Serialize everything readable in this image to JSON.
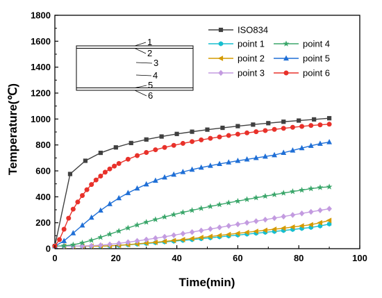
{
  "chart_data": {
    "type": "line",
    "title": "",
    "xlabel": "Time(min)",
    "ylabel": "Temperature(℃)",
    "xlim": [
      0,
      100
    ],
    "ylim": [
      0,
      1800
    ],
    "x_ticks": [
      "0",
      "20",
      "40",
      "60",
      "80",
      "100"
    ],
    "y_ticks": [
      "0",
      "200",
      "400",
      "600",
      "800",
      "1000",
      "1200",
      "1400",
      "1600",
      "1800"
    ],
    "grid": false,
    "legend_position": "top-right",
    "series": [
      {
        "name": "ISO834",
        "color": "#404040",
        "marker": "square",
        "x": [
          0,
          5,
          10,
          15,
          20,
          25,
          30,
          35,
          40,
          45,
          50,
          55,
          60,
          65,
          70,
          75,
          80,
          85,
          90
        ],
        "y": [
          20,
          576,
          678,
          739,
          781,
          815,
          842,
          865,
          885,
          902,
          918,
          932,
          945,
          957,
          968,
          979,
          988,
          997,
          1006
        ]
      },
      {
        "name": "point 1",
        "color": "#17becf",
        "marker": "hexagon",
        "x": [
          0,
          3,
          6,
          9,
          12,
          15,
          18,
          21,
          24,
          27,
          30,
          33,
          36,
          39,
          42,
          45,
          48,
          51,
          54,
          57,
          60,
          63,
          66,
          69,
          72,
          75,
          78,
          81,
          84,
          87,
          90
        ],
        "y": [
          20,
          20,
          20,
          20,
          20,
          20,
          22,
          25,
          30,
          35,
          40,
          46,
          52,
          58,
          64,
          70,
          77,
          84,
          91,
          98,
          105,
          112,
          119,
          126,
          133,
          140,
          148,
          156,
          164,
          175,
          190
        ]
      },
      {
        "name": "point 2",
        "color": "#d49a00",
        "marker": "triangle-left",
        "x": [
          0,
          3,
          6,
          9,
          12,
          15,
          18,
          21,
          24,
          27,
          30,
          33,
          36,
          39,
          42,
          45,
          48,
          51,
          54,
          57,
          60,
          63,
          66,
          69,
          72,
          75,
          78,
          81,
          84,
          87,
          90
        ],
        "y": [
          20,
          20,
          20,
          20,
          20,
          20,
          22,
          26,
          31,
          37,
          43,
          49,
          56,
          63,
          70,
          78,
          86,
          94,
          102,
          110,
          118,
          126,
          134,
          142,
          150,
          158,
          167,
          176,
          185,
          200,
          218
        ]
      },
      {
        "name": "point 3",
        "color": "#c39be0",
        "marker": "diamond",
        "x": [
          0,
          3,
          6,
          9,
          12,
          15,
          18,
          21,
          24,
          27,
          30,
          33,
          36,
          39,
          42,
          45,
          48,
          51,
          54,
          57,
          60,
          63,
          66,
          69,
          72,
          75,
          78,
          81,
          84,
          87,
          90
        ],
        "y": [
          20,
          20,
          20,
          21,
          23,
          27,
          33,
          41,
          50,
          60,
          70,
          81,
          92,
          104,
          116,
          128,
          140,
          152,
          164,
          176,
          188,
          200,
          212,
          224,
          236,
          248,
          260,
          272,
          284,
          296,
          308
        ]
      },
      {
        "name": "point 4",
        "color": "#3aa66a",
        "marker": "star",
        "x": [
          0,
          3,
          6,
          9,
          12,
          15,
          18,
          21,
          24,
          27,
          30,
          33,
          36,
          39,
          42,
          45,
          48,
          51,
          54,
          57,
          60,
          63,
          66,
          69,
          72,
          75,
          78,
          81,
          84,
          87,
          90
        ],
        "y": [
          20,
          22,
          30,
          45,
          65,
          88,
          112,
          136,
          160,
          183,
          205,
          225,
          245,
          263,
          280,
          296,
          311,
          326,
          340,
          354,
          367,
          380,
          393,
          405,
          417,
          429,
          441,
          452,
          463,
          472,
          477
        ]
      },
      {
        "name": "point 5",
        "color": "#1f6fd6",
        "marker": "triangle-up",
        "x": [
          0,
          3,
          6,
          9,
          12,
          15,
          18,
          21,
          24,
          27,
          30,
          33,
          36,
          39,
          42,
          45,
          48,
          51,
          54,
          57,
          60,
          63,
          66,
          69,
          72,
          75,
          78,
          81,
          84,
          87,
          90
        ],
        "y": [
          20,
          60,
          120,
          180,
          240,
          295,
          345,
          390,
          430,
          465,
          497,
          525,
          550,
          572,
          592,
          610,
          626,
          640,
          654,
          666,
          678,
          689,
          700,
          711,
          722,
          740,
          758,
          776,
          794,
          810,
          822
        ]
      },
      {
        "name": "point 6",
        "color": "#e8312a",
        "marker": "circle",
        "x": [
          0,
          1.5,
          3,
          4.5,
          6,
          7.5,
          9,
          10.5,
          12,
          13.5,
          15,
          16.5,
          18,
          19.5,
          21,
          24,
          27,
          30,
          33,
          36,
          39,
          42,
          45,
          48,
          51,
          54,
          57,
          60,
          63,
          66,
          69,
          72,
          75,
          78,
          81,
          84,
          87,
          90
        ],
        "y": [
          20,
          70,
          150,
          235,
          305,
          360,
          410,
          455,
          495,
          530,
          560,
          590,
          615,
          637,
          657,
          690,
          718,
          742,
          763,
          781,
          797,
          812,
          826,
          839,
          851,
          862,
          873,
          883,
          893,
          902,
          911,
          920,
          928,
          936,
          943,
          950,
          955,
          960
        ]
      }
    ],
    "inset_labels": [
      "1",
      "2",
      "3",
      "4",
      "5",
      "6"
    ]
  }
}
